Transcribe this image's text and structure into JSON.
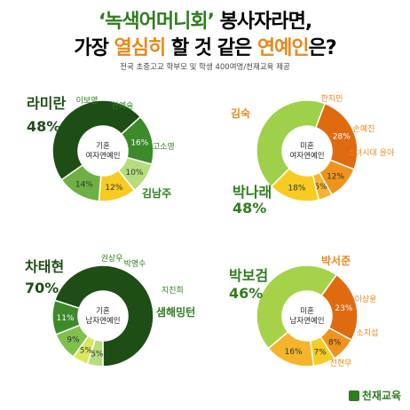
{
  "header": {
    "title_line1_part1": "‘녹색어머니회’",
    "title_line1_part2": " 봉사자라면,",
    "title_line2_part1": "가장 ",
    "title_line2_part2": "열심히",
    "title_line2_part3": " 할 것 같은 ",
    "title_line2_part4": "연예인",
    "title_line2_part5": "은?",
    "subtitle": "전국 초중고교 학부모 및 학생 400여명/천재교육 제공"
  },
  "logo": {
    "text": "천재교육"
  },
  "colors": {
    "green_dark": "#1f4d16",
    "green_mid": "#3c8a2a",
    "green_light": "#7fc04d",
    "green_pale": "#b6dc7e",
    "yellow_green": "#d9e85c",
    "orange_dark": "#e06a0f",
    "orange_mid": "#f0931c",
    "orange_light": "#f6b42d",
    "yellow": "#f7cc22",
    "green_label": "#2f7d1e",
    "orange_label": "#e8881a"
  },
  "chart_data": [
    {
      "type": "pie",
      "center_label": [
        "기혼",
        "여자연예인"
      ],
      "slices": [
        {
          "label": "라미란",
          "value": 48,
          "color": "#1f4d16"
        },
        {
          "label": "김남주",
          "value": 16,
          "color": "#3c8a2a"
        },
        {
          "label": "고소영",
          "value": 10,
          "color": "#b6dc7e"
        },
        {
          "label": "한예슬",
          "value": 12,
          "color": "#f7cc22"
        },
        {
          "label": "이보영",
          "value": 14,
          "color": "#6fb043"
        }
      ]
    },
    {
      "type": "pie",
      "center_label": [
        "미혼",
        "여자연예인"
      ],
      "slices": [
        {
          "label": "박나래",
          "value": 48,
          "color": "#9ed04a"
        },
        {
          "label": "김숙",
          "value": 28,
          "color": "#e06a0f"
        },
        {
          "label": "한지민",
          "value": 12,
          "color": "#f0931c"
        },
        {
          "label": "손예진",
          "value": 5,
          "color": "#f6b42d"
        },
        {
          "label": "소녀시대 윤아",
          "value": 18,
          "color": "#f7cc22"
        }
      ]
    },
    {
      "type": "pie",
      "center_label": [
        "기혼",
        "남자연예인"
      ],
      "slices": [
        {
          "label": "차태현",
          "value": 70,
          "color": "#1f4d16"
        },
        {
          "label": "권상우",
          "value": 5,
          "color": "#b6dc7e"
        },
        {
          "label": "박명수",
          "value": 5,
          "color": "#d9e85c"
        },
        {
          "label": "지진희",
          "value": 9,
          "color": "#7fc04d"
        },
        {
          "label": "샘해밍턴",
          "value": 11,
          "color": "#3c8a2a"
        }
      ]
    },
    {
      "type": "pie",
      "center_label": [
        "미혼",
        "남자연예인"
      ],
      "slices": [
        {
          "label": "박보검",
          "value": 46,
          "color": "#a6d24a"
        },
        {
          "label": "박서준",
          "value": 23,
          "color": "#e06a0f"
        },
        {
          "label": "이상윤",
          "value": 8,
          "color": "#f0931c"
        },
        {
          "label": "소지섭",
          "value": 7,
          "color": "#f7cc22"
        },
        {
          "label": "전현무",
          "value": 16,
          "color": "#f6b42d"
        }
      ]
    }
  ]
}
